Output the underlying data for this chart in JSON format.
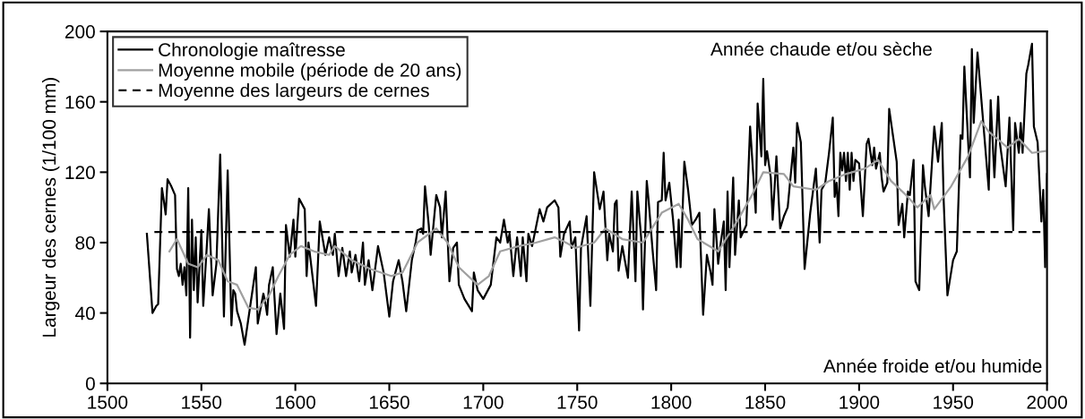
{
  "chart_data": {
    "type": "line",
    "ylabel": "Largeur des cernes (1/100 mm)",
    "xlim": [
      1500,
      2000
    ],
    "xticks": [
      1500,
      1550,
      1600,
      1650,
      1700,
      1750,
      1800,
      1850,
      1900,
      1950,
      2000
    ],
    "ylim": [
      0,
      200
    ],
    "yticks": [
      0,
      40,
      80,
      120,
      160,
      200
    ],
    "grid": false,
    "legend": "top left",
    "marker": "none",
    "annotations": [
      "Année chaude et/ou sèche",
      "Année froide et/ou humide"
    ],
    "series": [
      {
        "name": "Chronologie maîtresse",
        "color": "#000000",
        "line_style": "solid",
        "x": [
          1521,
          1524,
          1526,
          1527,
          1529,
          1530,
          1531,
          1532,
          1534,
          1536,
          1537,
          1538,
          1539,
          1540,
          1541,
          1542,
          1543,
          1544,
          1545,
          1546,
          1547,
          1548,
          1550,
          1551,
          1553,
          1554,
          1556,
          1558,
          1560,
          1562,
          1564,
          1566,
          1567,
          1568,
          1569,
          1571,
          1573,
          1576,
          1579,
          1580,
          1583,
          1584,
          1585,
          1586,
          1588,
          1590,
          1592,
          1594,
          1595,
          1597,
          1599,
          1600,
          1602,
          1605,
          1606,
          1607,
          1611,
          1613,
          1616,
          1618,
          1620,
          1621,
          1623,
          1625,
          1627,
          1629,
          1630,
          1632,
          1634,
          1636,
          1637,
          1639,
          1641,
          1644,
          1647,
          1650,
          1652,
          1655,
          1657,
          1659,
          1662,
          1664,
          1665,
          1667,
          1668,
          1669,
          1671,
          1672,
          1675,
          1677,
          1678,
          1680,
          1682,
          1684,
          1686,
          1687,
          1690,
          1694,
          1695,
          1697,
          1700,
          1704,
          1707,
          1709,
          1711,
          1713,
          1714,
          1716,
          1718,
          1720,
          1721,
          1723,
          1724,
          1726,
          1730,
          1732,
          1734,
          1738,
          1740,
          1741,
          1743,
          1746,
          1747,
          1749,
          1751,
          1752,
          1755,
          1757,
          1759,
          1762,
          1764,
          1766,
          1767,
          1769,
          1770,
          1771,
          1772,
          1774,
          1777,
          1779,
          1781,
          1782,
          1784,
          1785,
          1787,
          1788,
          1790,
          1792,
          1793,
          1795,
          1796,
          1797,
          1799,
          1801,
          1803,
          1804,
          1805,
          1807,
          1809,
          1811,
          1813,
          1815,
          1817,
          1819,
          1821,
          1822,
          1823,
          1825,
          1826,
          1828,
          1829,
          1830,
          1831,
          1833,
          1834,
          1836,
          1837,
          1840,
          1842,
          1845,
          1846,
          1848,
          1849,
          1850,
          1851,
          1853,
          1854,
          1856,
          1858,
          1860,
          1862,
          1865,
          1866,
          1867,
          1869,
          1871,
          1874,
          1877,
          1879,
          1880,
          1882,
          1884,
          1886,
          1887,
          1888,
          1889,
          1890,
          1891,
          1892,
          1893,
          1894,
          1895,
          1896,
          1897,
          1898,
          1900,
          1902,
          1904,
          1905,
          1907,
          1908,
          1909,
          1911,
          1912,
          1913,
          1915,
          1916,
          1920,
          1921,
          1923,
          1924,
          1926,
          1927,
          1929,
          1930,
          1932,
          1934,
          1935,
          1937,
          1940,
          1942,
          1944,
          1945,
          1947,
          1950,
          1952,
          1954,
          1955,
          1956,
          1959,
          1960,
          1961,
          1963,
          1969,
          1970,
          1972,
          1974,
          1975,
          1978,
          1980,
          1982,
          1983,
          1985,
          1986,
          1987,
          1989,
          1990,
          1992,
          1993,
          1995,
          1997,
          1998,
          1999,
          2000
        ],
        "values": [
          85,
          40,
          44,
          45,
          111,
          104,
          96,
          116,
          112,
          107,
          65,
          61,
          68,
          56,
          66,
          50,
          111,
          26,
          93,
          53,
          83,
          46,
          87,
          44,
          80,
          99,
          50,
          68,
          130,
          38,
          121,
          33,
          53,
          51,
          41,
          34,
          22,
          44,
          66,
          34,
          51,
          46,
          39,
          56,
          66,
          28,
          51,
          31,
          90,
          72,
          93,
          72,
          105,
          99,
          61,
          80,
          44,
          92,
          73,
          83,
          73,
          85,
          61,
          77,
          61,
          75,
          63,
          73,
          58,
          80,
          56,
          70,
          53,
          78,
          63,
          38,
          58,
          70,
          58,
          41,
          70,
          80,
          87,
          88,
          85,
          112,
          90,
          73,
          107,
          100,
          83,
          109,
          58,
          77,
          80,
          56,
          48,
          41,
          63,
          53,
          48,
          56,
          83,
          80,
          93,
          80,
          85,
          61,
          83,
          61,
          83,
          58,
          85,
          78,
          99,
          92,
          100,
          104,
          100,
          72,
          85,
          92,
          77,
          83,
          30,
          77,
          95,
          44,
          120,
          99,
          109,
          70,
          85,
          75,
          102,
          104,
          64,
          78,
          60,
          109,
          58,
          109,
          83,
          42,
          115,
          104,
          77,
          53,
          103,
          104,
          131,
          104,
          114,
          93,
          66,
          93,
          66,
          126,
          110,
          90,
          93,
          97,
          39,
          73,
          63,
          56,
          99,
          68,
          77,
          92,
          53,
          109,
          66,
          117,
          73,
          104,
          83,
          90,
          146,
          97,
          159,
          129,
          173,
          124,
          132,
          117,
          93,
          129,
          88,
          95,
          100,
          134,
          114,
          148,
          137,
          65,
          97,
          122,
          80,
          110,
          114,
          131,
          151,
          106,
          114,
          95,
          131,
          121,
          131,
          115,
          131,
          110,
          131,
          115,
          127,
          125,
          95,
          136,
          139,
          124,
          134,
          122,
          131,
          117,
          109,
          114,
          156,
          126,
          90,
          102,
          83,
          109,
          107,
          127,
          58,
          53,
          124,
          112,
          95,
          146,
          126,
          148,
          104,
          50,
          70,
          75,
          141,
          139,
          180,
          117,
          190,
          148,
          188,
          110,
          161,
          117,
          163,
          136,
          112,
          151,
          87,
          148,
          131,
          148,
          131,
          176,
          181,
          193,
          146,
          137,
          92,
          110,
          66,
          119
        ]
      },
      {
        "name": "Moyenne mobile (période de 20 ans)",
        "color": "#a0a0a0",
        "line_style": "solid",
        "x": [
          1533,
          1537,
          1543,
          1548,
          1553,
          1559,
          1564,
          1569,
          1575,
          1580,
          1586,
          1591,
          1597,
          1603,
          1610,
          1618,
          1621,
          1630,
          1640,
          1651,
          1657,
          1665,
          1675,
          1681,
          1687,
          1697,
          1703,
          1709,
          1719,
          1728,
          1738,
          1744,
          1749,
          1759,
          1765,
          1774,
          1785,
          1795,
          1804,
          1809,
          1814,
          1825,
          1835,
          1843,
          1849,
          1860,
          1865,
          1877,
          1884,
          1893,
          1903,
          1910,
          1917,
          1925,
          1931,
          1938,
          1940,
          1949,
          1958,
          1965,
          1969,
          1979,
          1985,
          1992,
          1999
        ],
        "values": [
          75,
          82,
          68,
          66,
          73,
          70,
          58,
          56,
          43,
          42,
          50,
          61,
          73,
          78,
          75,
          73,
          78,
          70,
          65,
          61,
          63,
          80,
          88,
          80,
          66,
          56,
          61,
          75,
          78,
          80,
          83,
          80,
          77,
          80,
          88,
          82,
          80,
          97,
          102,
          93,
          82,
          75,
          92,
          107,
          120,
          119,
          112,
          110,
          115,
          119,
          122,
          127,
          115,
          107,
          100,
          107,
          99,
          112,
          129,
          149,
          143,
          134,
          139,
          131,
          132
        ]
      },
      {
        "name": "Moyenne des largeurs de cernes",
        "color": "#000000",
        "line_style": "dashed",
        "x": [
          1525,
          2000
        ],
        "values": [
          86,
          86
        ]
      }
    ]
  }
}
